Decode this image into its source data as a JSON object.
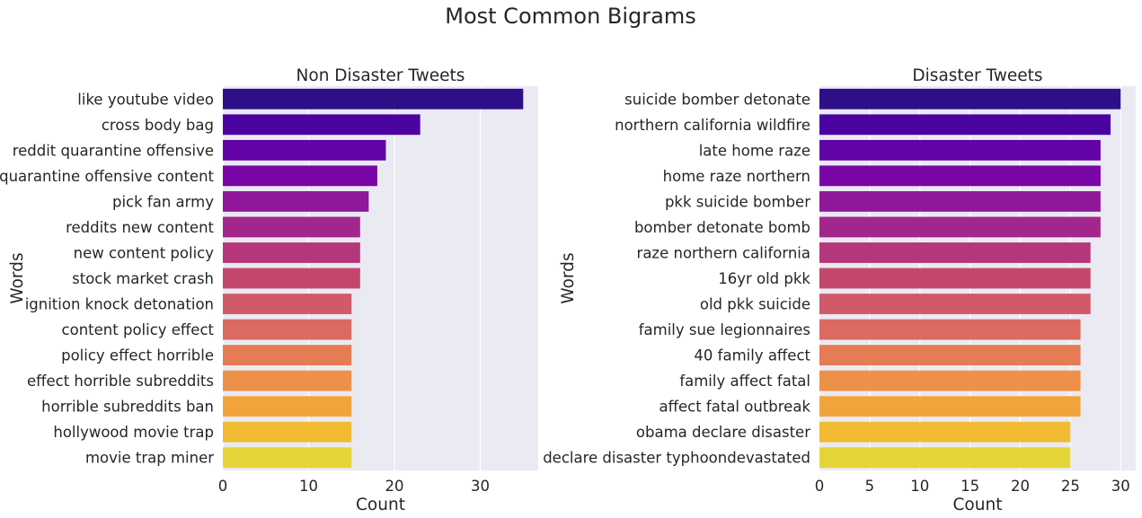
{
  "figure": {
    "title": "Most Common Bigrams"
  },
  "chart_data": [
    {
      "type": "bar",
      "orientation": "horizontal",
      "title": "Non Disaster Tweets",
      "xlabel": "Count",
      "ylabel": "Words",
      "xlim": [
        0,
        36.75
      ],
      "xticks": [
        0,
        10,
        20,
        30
      ],
      "grid": true,
      "palette": "plasma",
      "categories": [
        "like youtube video",
        "cross body bag",
        "reddit quarantine offensive",
        "quarantine offensive content",
        "pick fan army",
        "reddits new content",
        "new content policy",
        "stock market crash",
        "ignition knock detonation",
        "content policy effect",
        "policy effect horrible",
        "effect horrible subreddits",
        "horrible subreddits ban",
        "hollywood movie trap",
        "movie trap miner"
      ],
      "values": [
        35,
        23,
        19,
        18,
        17,
        16,
        16,
        16,
        15,
        15,
        15,
        15,
        15,
        15,
        15
      ]
    },
    {
      "type": "bar",
      "orientation": "horizontal",
      "title": "Disaster Tweets",
      "xlabel": "Count",
      "ylabel": "Words",
      "xlim": [
        0,
        31.5
      ],
      "xticks": [
        0,
        5,
        10,
        15,
        20,
        25,
        30
      ],
      "grid": true,
      "palette": "plasma",
      "categories": [
        "suicide bomber detonate",
        "northern california wildfire",
        "late home raze",
        "home raze northern",
        "pkk suicide bomber",
        "bomber detonate bomb",
        "raze northern california",
        "16yr old pkk",
        "old pkk suicide",
        "family sue legionnaires",
        "40 family affect",
        "family affect fatal",
        "affect fatal outbreak",
        "obama declare disaster",
        "declare disaster typhoondevastated"
      ],
      "values": [
        30,
        29,
        28,
        28,
        28,
        28,
        27,
        27,
        27,
        26,
        26,
        26,
        26,
        25,
        25
      ]
    }
  ],
  "colors": {
    "axes_background": "#eaeaf2",
    "grid": "#ffffff",
    "text": "#262626",
    "bars": [
      "#2f0f87",
      "#4a03a0",
      "#6203a7",
      "#7a05a6",
      "#8f1799",
      "#a3268d",
      "#b5367a",
      "#c3476d",
      "#d0596a",
      "#db6a60",
      "#e57c53",
      "#ed9149",
      "#f2a43c",
      "#f1bc33",
      "#e5d438"
    ]
  }
}
